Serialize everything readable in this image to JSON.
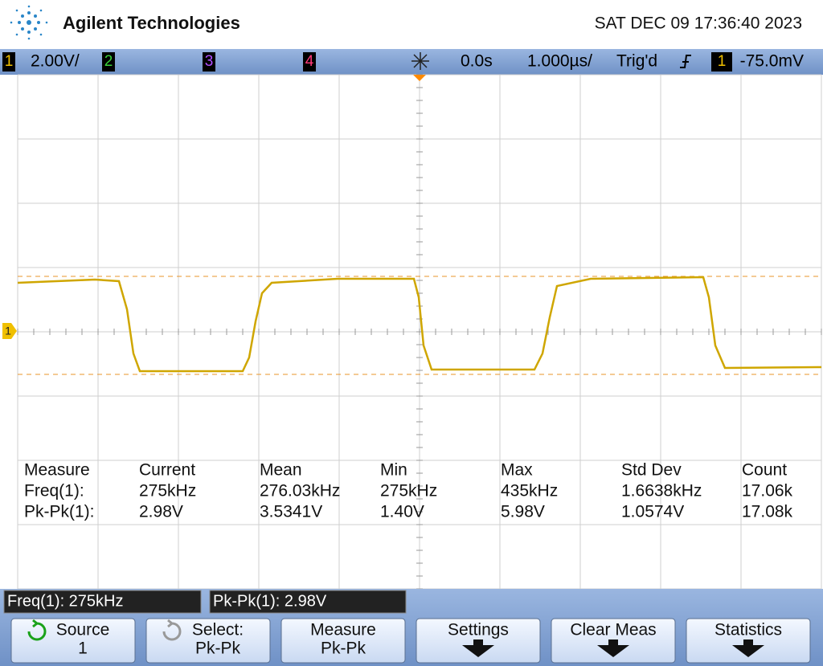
{
  "header": {
    "brand": "Agilent Technologies",
    "datetime": "SAT DEC 09 17:36:40 2023"
  },
  "status_bar": {
    "ch1": "1",
    "ch1_scale": "2.00V/",
    "ch2": "2",
    "ch3": "3",
    "ch4": "4",
    "time_offset": "0.0s",
    "time_scale": "1.000µs/",
    "trigger_status": "Trig'd",
    "trigger_source": "1",
    "trigger_level": "-75.0mV"
  },
  "ground_marker": "1",
  "measurements": {
    "rows": [
      [
        "Measure",
        "Current",
        "Mean",
        "Min",
        "Max",
        "Std Dev",
        "Count"
      ],
      [
        "Freq(1):",
        "275kHz",
        "276.03kHz",
        "275kHz",
        "435kHz",
        "1.6638kHz",
        "17.06k"
      ],
      [
        "Pk-Pk(1):",
        "2.98V",
        "3.5341V",
        "1.40V",
        "5.98V",
        "1.0574V",
        "17.08k"
      ]
    ]
  },
  "readouts": [
    "Freq(1): 275kHz",
    "Pk-Pk(1): 2.98V"
  ],
  "softkeys": [
    {
      "line1": "Source",
      "line2": "1"
    },
    {
      "line1": "Select:",
      "line2": "Pk-Pk"
    },
    {
      "line1": "Measure",
      "line2": "Pk-Pk"
    },
    {
      "line1": "Settings"
    },
    {
      "line1": "Clear Meas"
    },
    {
      "line1": "Statistics"
    }
  ]
}
